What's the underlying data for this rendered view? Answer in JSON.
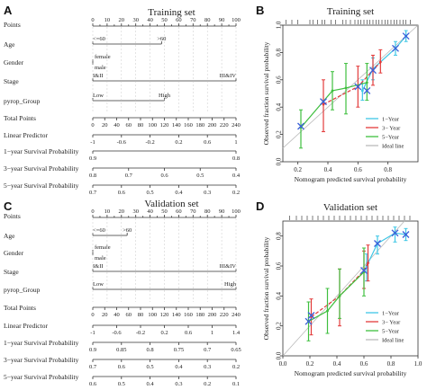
{
  "panels": {
    "A": "A",
    "B": "B",
    "C": "C",
    "D": "D"
  },
  "chart_data": [
    {
      "type": "nomogram",
      "panel": "A",
      "title": "Training set",
      "rows": [
        {
          "name": "Points",
          "min": 0,
          "max": 100,
          "ticks": [
            "0",
            "10",
            "20",
            "30",
            "40",
            "50",
            "60",
            "70",
            "80",
            "90",
            "100"
          ]
        },
        {
          "name": "Age",
          "segment": [
            0,
            48
          ],
          "labels": [
            "<=60",
            ">60"
          ]
        },
        {
          "name": "Gender",
          "segment": [
            0,
            0
          ],
          "labels": [
            "female",
            "male"
          ]
        },
        {
          "name": "Stage",
          "segment": [
            0,
            100
          ],
          "labels": [
            "I&II",
            "III&IV"
          ]
        },
        {
          "name": "pyrop_Group",
          "segment": [
            0,
            50
          ],
          "labels": [
            "Low",
            "High"
          ]
        },
        {
          "name": "Total Points",
          "min": 0,
          "max": 240,
          "ticks": [
            "0",
            "20",
            "40",
            "60",
            "80",
            "100",
            "120",
            "140",
            "160",
            "180",
            "200",
            "220",
            "240"
          ]
        },
        {
          "name": "Linear Predictor",
          "ticks": [
            "-1",
            "-0.6",
            "-0.2",
            "0.2",
            "0.6",
            "1"
          ]
        },
        {
          "name": "1−year Survival Probability",
          "ticks": [
            "0.9",
            "0.8"
          ]
        },
        {
          "name": "3−year Survival Probability",
          "ticks": [
            "0.8",
            "0.7",
            "0.6",
            "0.5",
            "0.4"
          ]
        },
        {
          "name": "5−year Survival Probability",
          "ticks": [
            "0.7",
            "0.6",
            "0.5",
            "0.4",
            "0.3",
            "0.2"
          ]
        }
      ]
    },
    {
      "type": "line",
      "panel": "B",
      "title": "Training set",
      "xlabel": "Nomogram predicted survival probability",
      "ylabel": "Observed fraction survival probability",
      "xlim": [
        0.1,
        1.0
      ],
      "ylim": [
        0.0,
        1.0
      ],
      "xticks": [
        "0.2",
        "0.4",
        "0.6",
        "0.8"
      ],
      "yticks": [
        "0.0",
        "0.2",
        "0.4",
        "0.6",
        "0.8",
        "1.0"
      ],
      "legend_position": "bottom-right",
      "series": [
        {
          "name": "1−Year",
          "color": "#3ec7e6",
          "x": [
            0.63,
            0.7,
            0.85,
            0.92
          ],
          "y": [
            0.52,
            0.68,
            0.83,
            0.92
          ],
          "lo": [
            0.45,
            0.6,
            0.78,
            0.88
          ],
          "hi": [
            0.6,
            0.76,
            0.88,
            0.96
          ]
        },
        {
          "name": "3− Year",
          "color": "#e33b3b",
          "x": [
            0.37,
            0.6,
            0.7,
            0.75
          ],
          "y": [
            0.42,
            0.55,
            0.67,
            0.73
          ],
          "lo": [
            0.22,
            0.4,
            0.56,
            0.65
          ],
          "hi": [
            0.6,
            0.7,
            0.78,
            0.82
          ]
        },
        {
          "name": "5−Year",
          "color": "#3fbf3f",
          "x": [
            0.22,
            0.43,
            0.52,
            0.66
          ],
          "y": [
            0.25,
            0.52,
            0.54,
            0.58
          ],
          "lo": [
            0.1,
            0.38,
            0.35,
            0.45
          ],
          "hi": [
            0.38,
            0.66,
            0.72,
            0.72
          ]
        }
      ],
      "crosses": [
        {
          "x": 0.22,
          "y": 0.26
        },
        {
          "x": 0.37,
          "y": 0.44
        },
        {
          "x": 0.6,
          "y": 0.55
        },
        {
          "x": 0.66,
          "y": 0.52
        },
        {
          "x": 0.7,
          "y": 0.67
        },
        {
          "x": 0.85,
          "y": 0.83
        },
        {
          "x": 0.92,
          "y": 0.92
        }
      ],
      "ideal_line": {
        "name": "Ideal line",
        "color": "#bbbbbb"
      },
      "rug_x": [
        0.12,
        0.16,
        0.2,
        0.28,
        0.3,
        0.33,
        0.36,
        0.38,
        0.42,
        0.45,
        0.5,
        0.52,
        0.55,
        0.58,
        0.6,
        0.62,
        0.64,
        0.66,
        0.68,
        0.7,
        0.72,
        0.74,
        0.76,
        0.78,
        0.8,
        0.82,
        0.84,
        0.86,
        0.88,
        0.9,
        0.92,
        0.95
      ]
    },
    {
      "type": "nomogram",
      "panel": "C",
      "title": "Validation set",
      "rows": [
        {
          "name": "Points",
          "min": 0,
          "max": 100,
          "ticks": [
            "0",
            "10",
            "20",
            "30",
            "40",
            "50",
            "60",
            "70",
            "80",
            "90",
            "100"
          ]
        },
        {
          "name": "Age",
          "segment": [
            0,
            24
          ],
          "labels": [
            "<=60",
            ">60"
          ]
        },
        {
          "name": "Gender",
          "segment": [
            0,
            0
          ],
          "labels": [
            "female",
            "male"
          ]
        },
        {
          "name": "Stage",
          "segment": [
            0,
            100
          ],
          "labels": [
            "I&II",
            "III&IV"
          ]
        },
        {
          "name": "pyrop_Group",
          "segment": [
            0,
            100
          ],
          "labels": [
            "Low",
            "High"
          ]
        },
        {
          "name": "Total Points",
          "min": 0,
          "max": 240,
          "ticks": [
            "0",
            "20",
            "40",
            "60",
            "80",
            "100",
            "120",
            "140",
            "160",
            "180",
            "200",
            "220",
            "240"
          ]
        },
        {
          "name": "Linear Predictor",
          "ticks": [
            "-1",
            "-0.6",
            "-0.2",
            "0.2",
            "0.6",
            "1",
            "1.4"
          ]
        },
        {
          "name": "1−year Survival Probability",
          "ticks": [
            "0.9",
            "0.85",
            "0.8",
            "0.75",
            "0.7",
            "0.65"
          ]
        },
        {
          "name": "3−year Survival Probability",
          "ticks": [
            "0.7",
            "0.6",
            "0.5",
            "0.4",
            "0.3",
            "0.2"
          ]
        },
        {
          "name": "5−year Survival Probability",
          "ticks": [
            "0.6",
            "0.5",
            "0.4",
            "0.3",
            "0.2",
            "0.1"
          ]
        }
      ]
    },
    {
      "type": "line",
      "panel": "D",
      "title": "Validation set",
      "xlabel": "Nomogram predicted survival probability",
      "ylabel": "Observed fraction survival probability",
      "xlim": [
        0.0,
        1.0
      ],
      "ylim": [
        0.0,
        0.9
      ],
      "xticks": [
        "0.0",
        "0.2",
        "0.4",
        "0.6",
        "0.8",
        "1.0"
      ],
      "yticks": [
        "0.0",
        "0.2",
        "0.4",
        "0.6",
        "0.8"
      ],
      "legend_position": "bottom-right",
      "series": [
        {
          "name": "1−Year",
          "color": "#3ec7e6",
          "x": [
            0.62,
            0.7,
            0.83,
            0.91
          ],
          "y": [
            0.6,
            0.75,
            0.82,
            0.81
          ],
          "lo": [
            0.5,
            0.68,
            0.76,
            0.77
          ],
          "hi": [
            0.68,
            0.8,
            0.86,
            0.85
          ]
        },
        {
          "name": "3− Year",
          "color": "#e33b3b",
          "x": [
            0.21,
            0.42,
            0.6,
            0.63
          ],
          "y": [
            0.26,
            0.4,
            0.57,
            0.62
          ],
          "lo": [
            0.14,
            0.2,
            0.45,
            0.5
          ],
          "hi": [
            0.38,
            0.58,
            0.7,
            0.74
          ]
        },
        {
          "name": "5−Year",
          "color": "#3fbf3f",
          "x": [
            0.19,
            0.33,
            0.42,
            0.6
          ],
          "y": [
            0.23,
            0.3,
            0.4,
            0.56
          ],
          "lo": [
            0.1,
            0.15,
            0.25,
            0.4
          ],
          "hi": [
            0.36,
            0.45,
            0.58,
            0.72
          ]
        }
      ],
      "crosses": [
        {
          "x": 0.19,
          "y": 0.23
        },
        {
          "x": 0.21,
          "y": 0.27
        },
        {
          "x": 0.6,
          "y": 0.57
        },
        {
          "x": 0.7,
          "y": 0.75
        },
        {
          "x": 0.83,
          "y": 0.82
        },
        {
          "x": 0.91,
          "y": 0.81
        }
      ],
      "ideal_line": {
        "name": "Ideal line",
        "color": "#bbbbbb"
      },
      "rug_x": [
        0.05,
        0.1,
        0.14,
        0.18,
        0.22,
        0.26,
        0.3,
        0.34,
        0.38,
        0.42,
        0.46,
        0.5,
        0.54,
        0.58,
        0.62,
        0.66,
        0.7,
        0.74,
        0.78,
        0.82,
        0.86,
        0.9,
        0.94
      ]
    }
  ]
}
